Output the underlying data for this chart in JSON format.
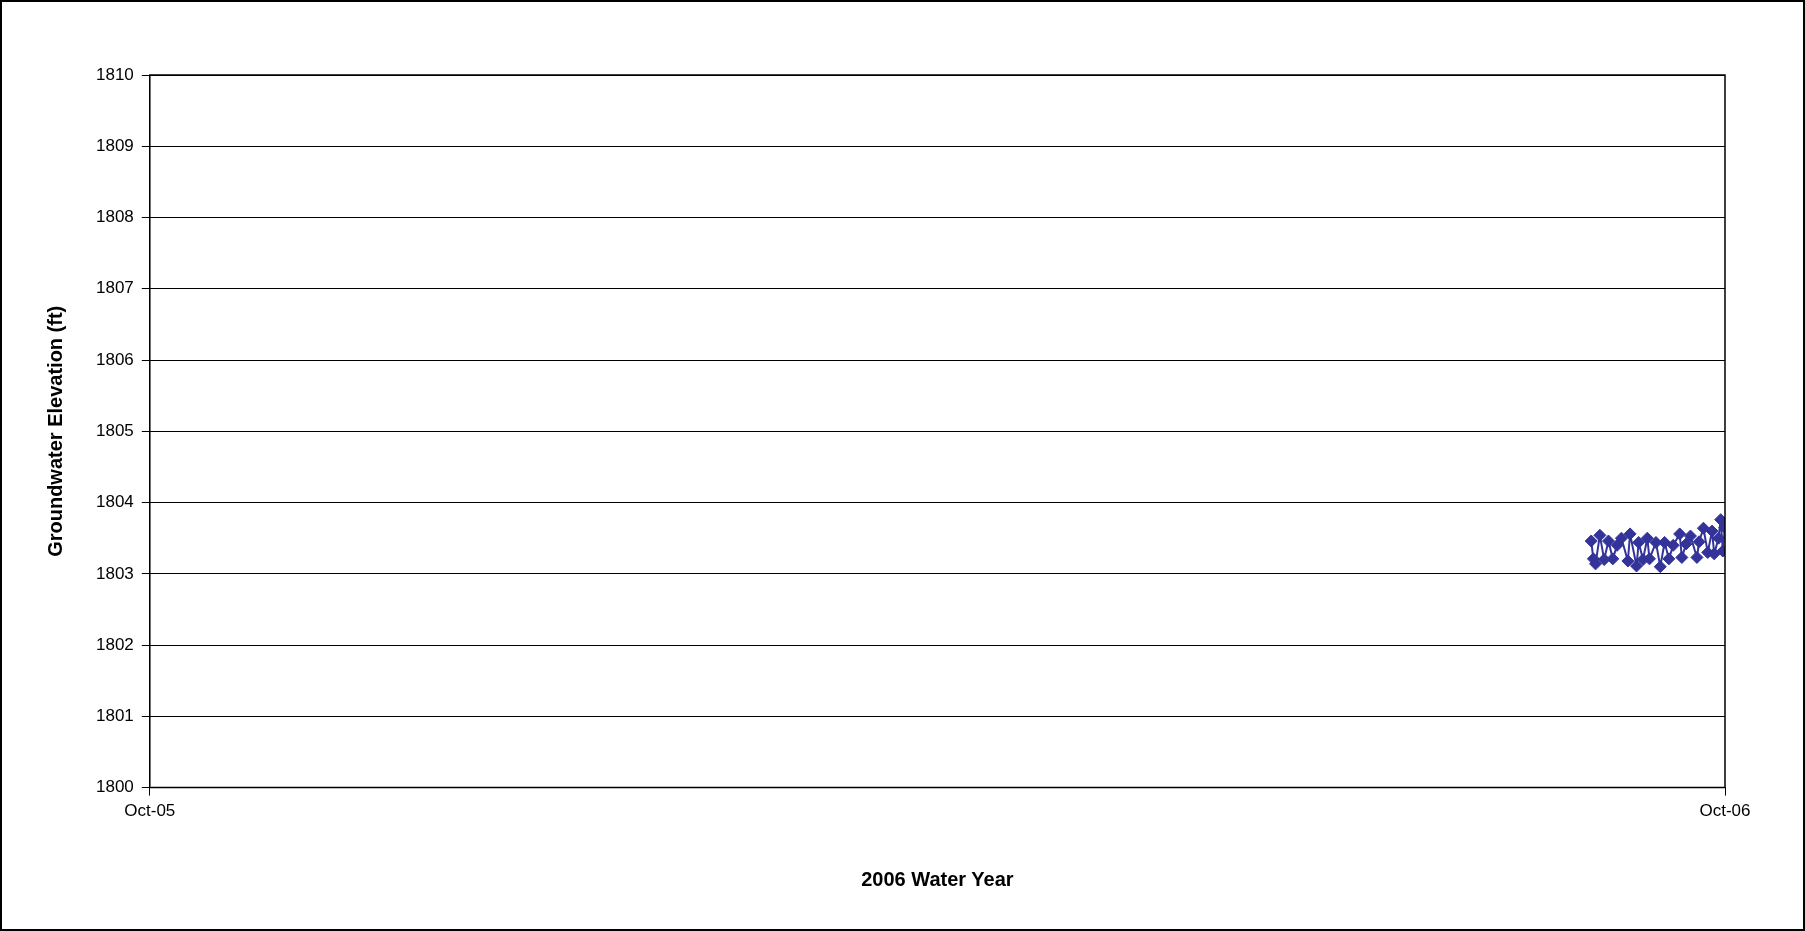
{
  "chart_data": {
    "type": "line",
    "xlabel": "2006 Water Year",
    "ylabel": "Groundwater Elevation (ft)",
    "xlim": [
      "2005-10-01",
      "2006-10-01"
    ],
    "xticks": [
      {
        "value": "2005-10-01",
        "label": "Oct-05"
      },
      {
        "value": "2006-10-01",
        "label": "Oct-06"
      }
    ],
    "ylim": [
      1800,
      1810
    ],
    "yticks": [
      1800,
      1801,
      1802,
      1803,
      1804,
      1805,
      1806,
      1807,
      1808,
      1809,
      1810
    ],
    "grid": "y",
    "legend": false,
    "marker": "diamond",
    "line_style": "solid",
    "series": [
      {
        "color": "#333399",
        "x": [
          "2006-08-31T00:00",
          "2006-08-31T12:00",
          "2006-09-01T00:00",
          "2006-09-02T00:00",
          "2006-09-03T00:00",
          "2006-09-04T00:00",
          "2006-09-05T00:00",
          "2006-09-06T00:00",
          "2006-09-07T00:00",
          "2006-09-08T12:00",
          "2006-09-09T00:00",
          "2006-09-10T12:00",
          "2006-09-11T00:00",
          "2006-09-12T00:00",
          "2006-09-13T00:00",
          "2006-09-13T12:00",
          "2006-09-15T00:00",
          "2006-09-16T00:00",
          "2006-09-17T00:00",
          "2006-09-18T00:00",
          "2006-09-19T00:00",
          "2006-09-20T12:00",
          "2006-09-21T00:00",
          "2006-09-22T00:00",
          "2006-09-23T00:00",
          "2006-09-24T12:00",
          "2006-09-25T00:00",
          "2006-09-26T00:00",
          "2006-09-27T00:00",
          "2006-09-28T00:00",
          "2006-09-28T12:00",
          "2006-09-29T12:00",
          "2006-09-30T00:00",
          "2006-09-30T12:00",
          "2006-09-30T23:00"
        ],
        "values": [
          1803.46,
          1803.21,
          1803.14,
          1803.54,
          1803.2,
          1803.46,
          1803.21,
          1803.4,
          1803.5,
          1803.18,
          1803.56,
          1803.11,
          1803.44,
          1803.2,
          1803.5,
          1803.21,
          1803.44,
          1803.1,
          1803.44,
          1803.21,
          1803.4,
          1803.56,
          1803.23,
          1803.42,
          1803.53,
          1803.23,
          1803.45,
          1803.64,
          1803.3,
          1803.6,
          1803.28,
          1803.5,
          1803.76,
          1803.32,
          1803.65
        ]
      }
    ]
  }
}
